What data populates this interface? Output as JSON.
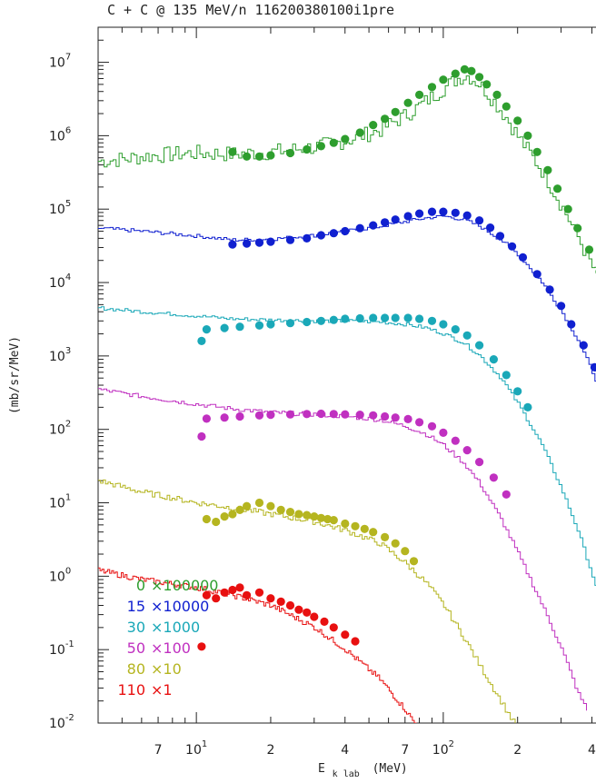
{
  "chart_data": {
    "type": "scatter",
    "title": "C + C @ 135 MeV/n 116200380100i1pre",
    "xlabel_main": "E",
    "xlabel_sub": "k lab",
    "xlabel_unit": "(MeV)",
    "ylabel": "(mb/sr/MeV)",
    "xscale": "log",
    "yscale": "log",
    "xlim": [
      4,
      460
    ],
    "ylim": [
      0.01,
      30000000
    ],
    "x_ticks": [
      {
        "value": 7,
        "label": "7"
      },
      {
        "value": 10,
        "label": "10",
        "sup": "1"
      },
      {
        "value": 20,
        "label": "2"
      },
      {
        "value": 40,
        "label": "4"
      },
      {
        "value": 70,
        "label": "7"
      },
      {
        "value": 100,
        "label": "10",
        "sup": "2"
      },
      {
        "value": 200,
        "label": "2"
      },
      {
        "value": 400,
        "label": "4"
      }
    ],
    "y_ticks": [
      {
        "value": 10000000,
        "base": "10",
        "exp": "7"
      },
      {
        "value": 1000000,
        "base": "10",
        "exp": "6"
      },
      {
        "value": 100000,
        "base": "10",
        "exp": "5"
      },
      {
        "value": 10000,
        "base": "10",
        "exp": "4"
      },
      {
        "value": 1000,
        "base": "10",
        "exp": "3"
      },
      {
        "value": 100,
        "base": "10",
        "exp": "2"
      },
      {
        "value": 10,
        "base": "10",
        "exp": "1"
      },
      {
        "value": 1,
        "base": "10",
        "exp": "0"
      },
      {
        "value": 0.1,
        "base": "10",
        "exp": "-1"
      },
      {
        "value": 0.01,
        "base": "10",
        "exp": "-2"
      }
    ],
    "legend_position": "bottom-left",
    "series": [
      {
        "angle": "0",
        "factor": "×100000",
        "color": "#2e9e2e",
        "data": [
          [
            14,
            600000
          ],
          [
            16,
            520000
          ],
          [
            18,
            520000
          ],
          [
            20,
            540000
          ],
          [
            24,
            580000
          ],
          [
            28,
            650000
          ],
          [
            32,
            720000
          ],
          [
            36,
            800000
          ],
          [
            40,
            900000
          ],
          [
            46,
            1100000
          ],
          [
            52,
            1400000
          ],
          [
            58,
            1700000
          ],
          [
            64,
            2100000
          ],
          [
            72,
            2800000
          ],
          [
            80,
            3600000
          ],
          [
            90,
            4600000
          ],
          [
            100,
            5800000
          ],
          [
            112,
            7000000
          ],
          [
            122,
            8000000
          ],
          [
            130,
            7600000
          ],
          [
            140,
            6300000
          ],
          [
            150,
            5000000
          ],
          [
            165,
            3600000
          ],
          [
            180,
            2500000
          ],
          [
            200,
            1600000
          ],
          [
            220,
            1000000
          ],
          [
            240,
            600000
          ],
          [
            265,
            340000
          ],
          [
            290,
            190000
          ],
          [
            320,
            100000
          ],
          [
            350,
            55000
          ],
          [
            390,
            28000
          ],
          [
            430,
            14000
          ]
        ],
        "calc": [
          [
            4,
            450000
          ],
          [
            5,
            480000
          ],
          [
            6,
            520000
          ],
          [
            8,
            560000
          ],
          [
            10,
            580000
          ],
          [
            14,
            560000
          ],
          [
            20,
            600000
          ],
          [
            30,
            700000
          ],
          [
            40,
            850000
          ],
          [
            55,
            1200000
          ],
          [
            70,
            1900000
          ],
          [
            85,
            3000000
          ],
          [
            100,
            4500000
          ],
          [
            115,
            6200000
          ],
          [
            125,
            6600000
          ],
          [
            140,
            5000000
          ],
          [
            160,
            2900000
          ],
          [
            180,
            1700000
          ],
          [
            200,
            950000
          ],
          [
            250,
            330000
          ],
          [
            300,
            110000
          ],
          [
            350,
            40000
          ],
          [
            400,
            16000
          ],
          [
            460,
            6000
          ]
        ],
        "noise": 0.22
      },
      {
        "angle": "15",
        "factor": "×10000",
        "color": "#1020d0",
        "data": [
          [
            14,
            33000
          ],
          [
            16,
            34000
          ],
          [
            18,
            35000
          ],
          [
            20,
            36000
          ],
          [
            24,
            38000
          ],
          [
            28,
            40000
          ],
          [
            32,
            44000
          ],
          [
            36,
            47000
          ],
          [
            40,
            50000
          ],
          [
            46,
            55000
          ],
          [
            52,
            60000
          ],
          [
            58,
            66000
          ],
          [
            64,
            72000
          ],
          [
            72,
            80000
          ],
          [
            80,
            87000
          ],
          [
            90,
            92000
          ],
          [
            100,
            92000
          ],
          [
            112,
            89000
          ],
          [
            125,
            82000
          ],
          [
            140,
            70000
          ],
          [
            155,
            56000
          ],
          [
            170,
            43000
          ],
          [
            190,
            31000
          ],
          [
            210,
            22000
          ],
          [
            240,
            13000
          ],
          [
            270,
            8000
          ],
          [
            300,
            4800
          ],
          [
            330,
            2700
          ],
          [
            370,
            1400
          ],
          [
            410,
            700
          ],
          [
            450,
            350
          ]
        ],
        "calc": [
          [
            4,
            55000
          ],
          [
            6,
            50000
          ],
          [
            10,
            43000
          ],
          [
            14,
            38000
          ],
          [
            20,
            39000
          ],
          [
            30,
            44000
          ],
          [
            40,
            50000
          ],
          [
            55,
            58000
          ],
          [
            70,
            68000
          ],
          [
            85,
            76000
          ],
          [
            100,
            80000
          ],
          [
            120,
            72000
          ],
          [
            140,
            58000
          ],
          [
            170,
            38000
          ],
          [
            200,
            24000
          ],
          [
            250,
            10000
          ],
          [
            300,
            4000
          ],
          [
            350,
            1600
          ],
          [
            400,
            600
          ],
          [
            460,
            200
          ]
        ],
        "noise": 0.05
      },
      {
        "angle": "30",
        "factor": "×1000",
        "color": "#1aa8b8",
        "data": [
          [
            10.5,
            1600
          ],
          [
            11,
            2300
          ],
          [
            13,
            2400
          ],
          [
            15,
            2500
          ],
          [
            18,
            2600
          ],
          [
            20,
            2700
          ],
          [
            24,
            2800
          ],
          [
            28,
            2900
          ],
          [
            32,
            3000
          ],
          [
            36,
            3100
          ],
          [
            40,
            3200
          ],
          [
            46,
            3250
          ],
          [
            52,
            3300
          ],
          [
            58,
            3300
          ],
          [
            64,
            3300
          ],
          [
            72,
            3300
          ],
          [
            80,
            3200
          ],
          [
            90,
            3000
          ],
          [
            100,
            2700
          ],
          [
            112,
            2300
          ],
          [
            125,
            1900
          ],
          [
            140,
            1400
          ],
          [
            160,
            900
          ],
          [
            180,
            550
          ],
          [
            200,
            330
          ],
          [
            220,
            200
          ]
        ],
        "calc": [
          [
            4,
            4500
          ],
          [
            6,
            4000
          ],
          [
            10,
            3500
          ],
          [
            14,
            3200
          ],
          [
            20,
            3100
          ],
          [
            30,
            3000
          ],
          [
            40,
            3000
          ],
          [
            55,
            2900
          ],
          [
            70,
            2700
          ],
          [
            85,
            2400
          ],
          [
            100,
            2000
          ],
          [
            120,
            1500
          ],
          [
            140,
            1000
          ],
          [
            170,
            500
          ],
          [
            200,
            220
          ],
          [
            250,
            60
          ],
          [
            300,
            15
          ],
          [
            350,
            4
          ],
          [
            400,
            1
          ],
          [
            460,
            0.2
          ]
        ],
        "noise": 0.05
      },
      {
        "angle": "50",
        "factor": "×100",
        "color": "#c030c0",
        "data": [
          [
            10.5,
            80
          ],
          [
            11,
            140
          ],
          [
            13,
            145
          ],
          [
            15,
            150
          ],
          [
            18,
            155
          ],
          [
            20,
            158
          ],
          [
            24,
            160
          ],
          [
            28,
            162
          ],
          [
            32,
            163
          ],
          [
            36,
            162
          ],
          [
            40,
            160
          ],
          [
            46,
            158
          ],
          [
            52,
            155
          ],
          [
            58,
            150
          ],
          [
            64,
            145
          ],
          [
            72,
            138
          ],
          [
            80,
            125
          ],
          [
            90,
            110
          ],
          [
            100,
            90
          ],
          [
            112,
            70
          ],
          [
            125,
            52
          ],
          [
            140,
            36
          ],
          [
            160,
            22
          ],
          [
            180,
            13
          ]
        ],
        "calc": [
          [
            4,
            350
          ],
          [
            6,
            280
          ],
          [
            10,
            220
          ],
          [
            14,
            190
          ],
          [
            20,
            170
          ],
          [
            30,
            160
          ],
          [
            40,
            150
          ],
          [
            55,
            135
          ],
          [
            70,
            110
          ],
          [
            85,
            85
          ],
          [
            100,
            60
          ],
          [
            120,
            35
          ],
          [
            140,
            18
          ],
          [
            170,
            6
          ],
          [
            200,
            2
          ],
          [
            250,
            0.4
          ],
          [
            300,
            0.1
          ],
          [
            350,
            0.025
          ],
          [
            380,
            0.015
          ]
        ],
        "noise": 0.06
      },
      {
        "angle": "80",
        "factor": "×10",
        "color": "#b5b520",
        "data": [
          [
            11,
            6
          ],
          [
            12,
            5.5
          ],
          [
            13,
            6.5
          ],
          [
            14,
            7
          ],
          [
            15,
            8
          ],
          [
            16,
            9
          ],
          [
            18,
            10
          ],
          [
            20,
            9
          ],
          [
            22,
            8
          ],
          [
            24,
            7.5
          ],
          [
            26,
            7
          ],
          [
            28,
            6.8
          ],
          [
            30,
            6.5
          ],
          [
            32,
            6.2
          ],
          [
            34,
            6
          ],
          [
            36,
            5.8
          ],
          [
            40,
            5.2
          ],
          [
            44,
            4.8
          ],
          [
            48,
            4.4
          ],
          [
            52,
            4
          ],
          [
            58,
            3.4
          ],
          [
            64,
            2.8
          ],
          [
            70,
            2.2
          ],
          [
            76,
            1.6
          ]
        ],
        "calc": [
          [
            4,
            20
          ],
          [
            6,
            14
          ],
          [
            10,
            10
          ],
          [
            14,
            8.5
          ],
          [
            20,
            7
          ],
          [
            30,
            5.5
          ],
          [
            40,
            4.2
          ],
          [
            55,
            2.8
          ],
          [
            70,
            1.5
          ],
          [
            85,
            0.8
          ],
          [
            100,
            0.4
          ],
          [
            120,
            0.15
          ],
          [
            140,
            0.06
          ],
          [
            170,
            0.02
          ],
          [
            200,
            0.008
          ]
        ],
        "noise": 0.08
      },
      {
        "angle": "110",
        "factor": "×1",
        "color": "#e81010",
        "data": [
          [
            10.5,
            0.11
          ],
          [
            11,
            0.55
          ],
          [
            12,
            0.5
          ],
          [
            13,
            0.6
          ],
          [
            14,
            0.65
          ],
          [
            15,
            0.7
          ],
          [
            16,
            0.55
          ],
          [
            18,
            0.6
          ],
          [
            20,
            0.5
          ],
          [
            22,
            0.45
          ],
          [
            24,
            0.4
          ],
          [
            26,
            0.35
          ],
          [
            28,
            0.32
          ],
          [
            30,
            0.28
          ],
          [
            33,
            0.24
          ],
          [
            36,
            0.2
          ],
          [
            40,
            0.16
          ],
          [
            44,
            0.13
          ]
        ],
        "calc": [
          [
            4,
            1.2
          ],
          [
            6,
            0.9
          ],
          [
            10,
            0.7
          ],
          [
            14,
            0.55
          ],
          [
            20,
            0.4
          ],
          [
            30,
            0.2
          ],
          [
            40,
            0.1
          ],
          [
            55,
            0.04
          ],
          [
            70,
            0.015
          ],
          [
            85,
            0.006
          ]
        ],
        "noise": 0.08
      }
    ]
  }
}
